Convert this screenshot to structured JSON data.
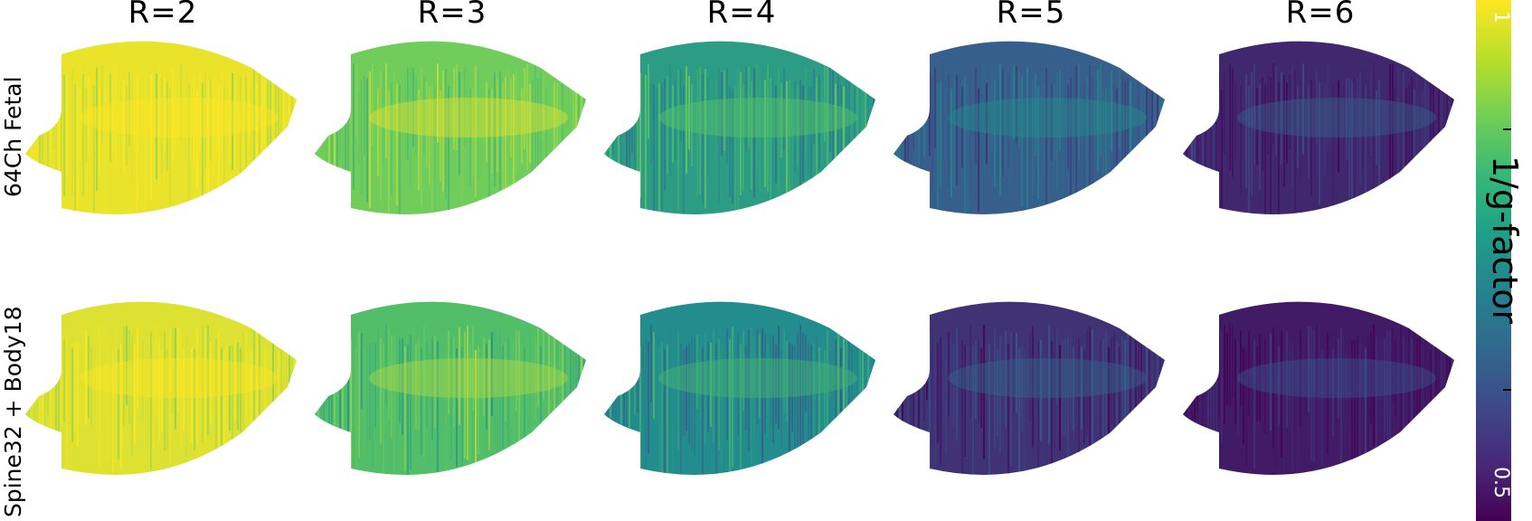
{
  "columns": [
    "R=2",
    "R=3",
    "R=4",
    "R=5",
    "R=6"
  ],
  "rows": [
    "64Ch Fetal",
    "Spine32 + Body18"
  ],
  "colorbar": {
    "label": "1/g-factor",
    "max_label": "1",
    "min_label": "0.5",
    "colors": [
      "#440154",
      "#3b528b",
      "#21918c",
      "#5ec962",
      "#fde725"
    ]
  },
  "panels": [
    [
      {
        "level": 0.97
      },
      {
        "level": 0.78
      },
      {
        "level": 0.55
      },
      {
        "level": 0.3
      },
      {
        "level": 0.12
      }
    ],
    [
      {
        "level": 0.95
      },
      {
        "level": 0.7
      },
      {
        "level": 0.48
      },
      {
        "level": 0.15
      },
      {
        "level": 0.08
      }
    ]
  ]
}
